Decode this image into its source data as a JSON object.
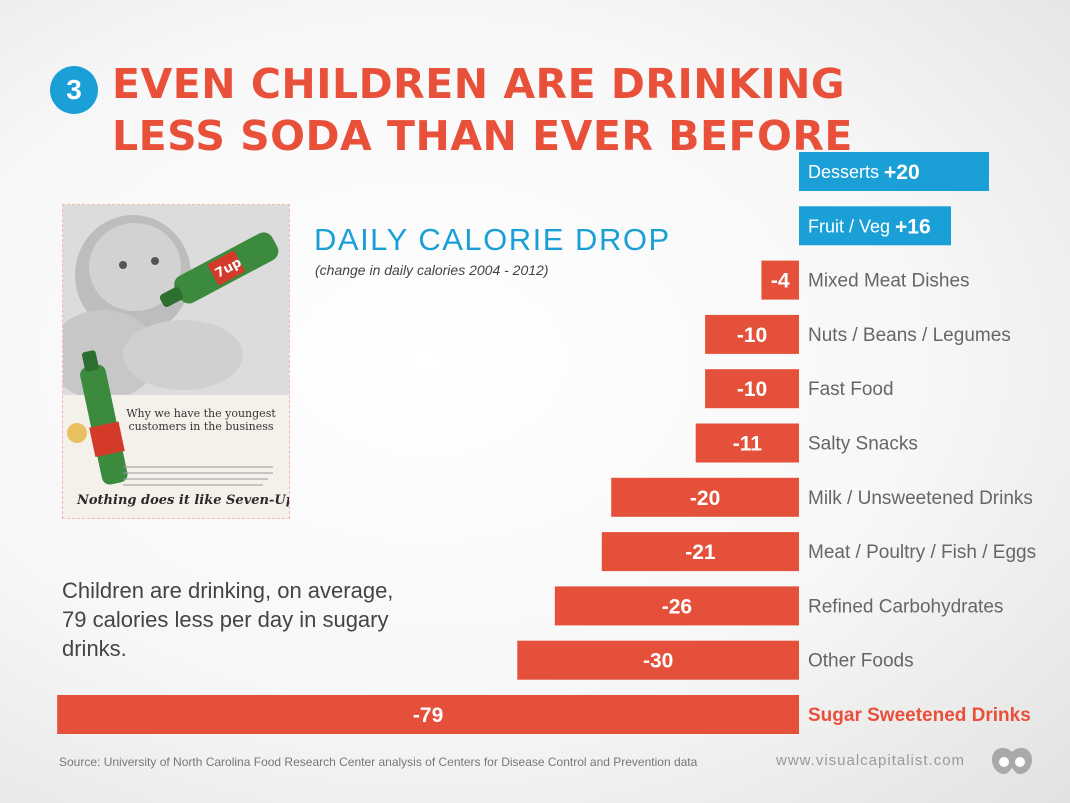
{
  "header": {
    "badge": "3",
    "line1": "EVEN CHILDREN ARE DRINKING",
    "line2": "LESS SODA THAN EVER BEFORE"
  },
  "ad": {
    "bottle_label": "7up",
    "tagline": "Why we have the youngest customers in the business",
    "slogan": "Nothing does it like Seven-Up!"
  },
  "note": "Children are drinking, on average, 79 calories less per day in sugary drinks.",
  "footer": {
    "source": "Source: University of North Carolina Food Research Center analysis of Centers for Disease Control and Prevention data",
    "site": "www.visualcapitalist.com"
  },
  "colors": {
    "negative": "#e5503a",
    "positive": "#1aa0d6",
    "label": "#666666",
    "highlight": "#e8503a"
  },
  "chart_data": {
    "type": "bar",
    "orientation": "horizontal",
    "title": "DAILY CALORIE DROP",
    "subtitle": "(change in daily calories 2004 - 2012)",
    "categories": [
      "Desserts",
      "Fruit / Veg",
      "Mixed Meat Dishes",
      "Nuts / Beans / Legumes",
      "Fast Food",
      "Salty Snacks",
      "Milk / Unsweetened Drinks",
      "Meat / Poultry / Fish / Eggs",
      "Refined Carbohydrates",
      "Other Foods",
      "Sugar Sweetened Drinks"
    ],
    "values": [
      20,
      16,
      -4,
      -10,
      -10,
      -11,
      -20,
      -21,
      -26,
      -30,
      -79
    ],
    "value_labels": [
      "+20",
      "+16",
      "-4",
      "-10",
      "-10",
      "-11",
      "-20",
      "-21",
      "-26",
      "-30",
      "-79"
    ],
    "highlighted": "Sugar Sweetened Drinks"
  }
}
